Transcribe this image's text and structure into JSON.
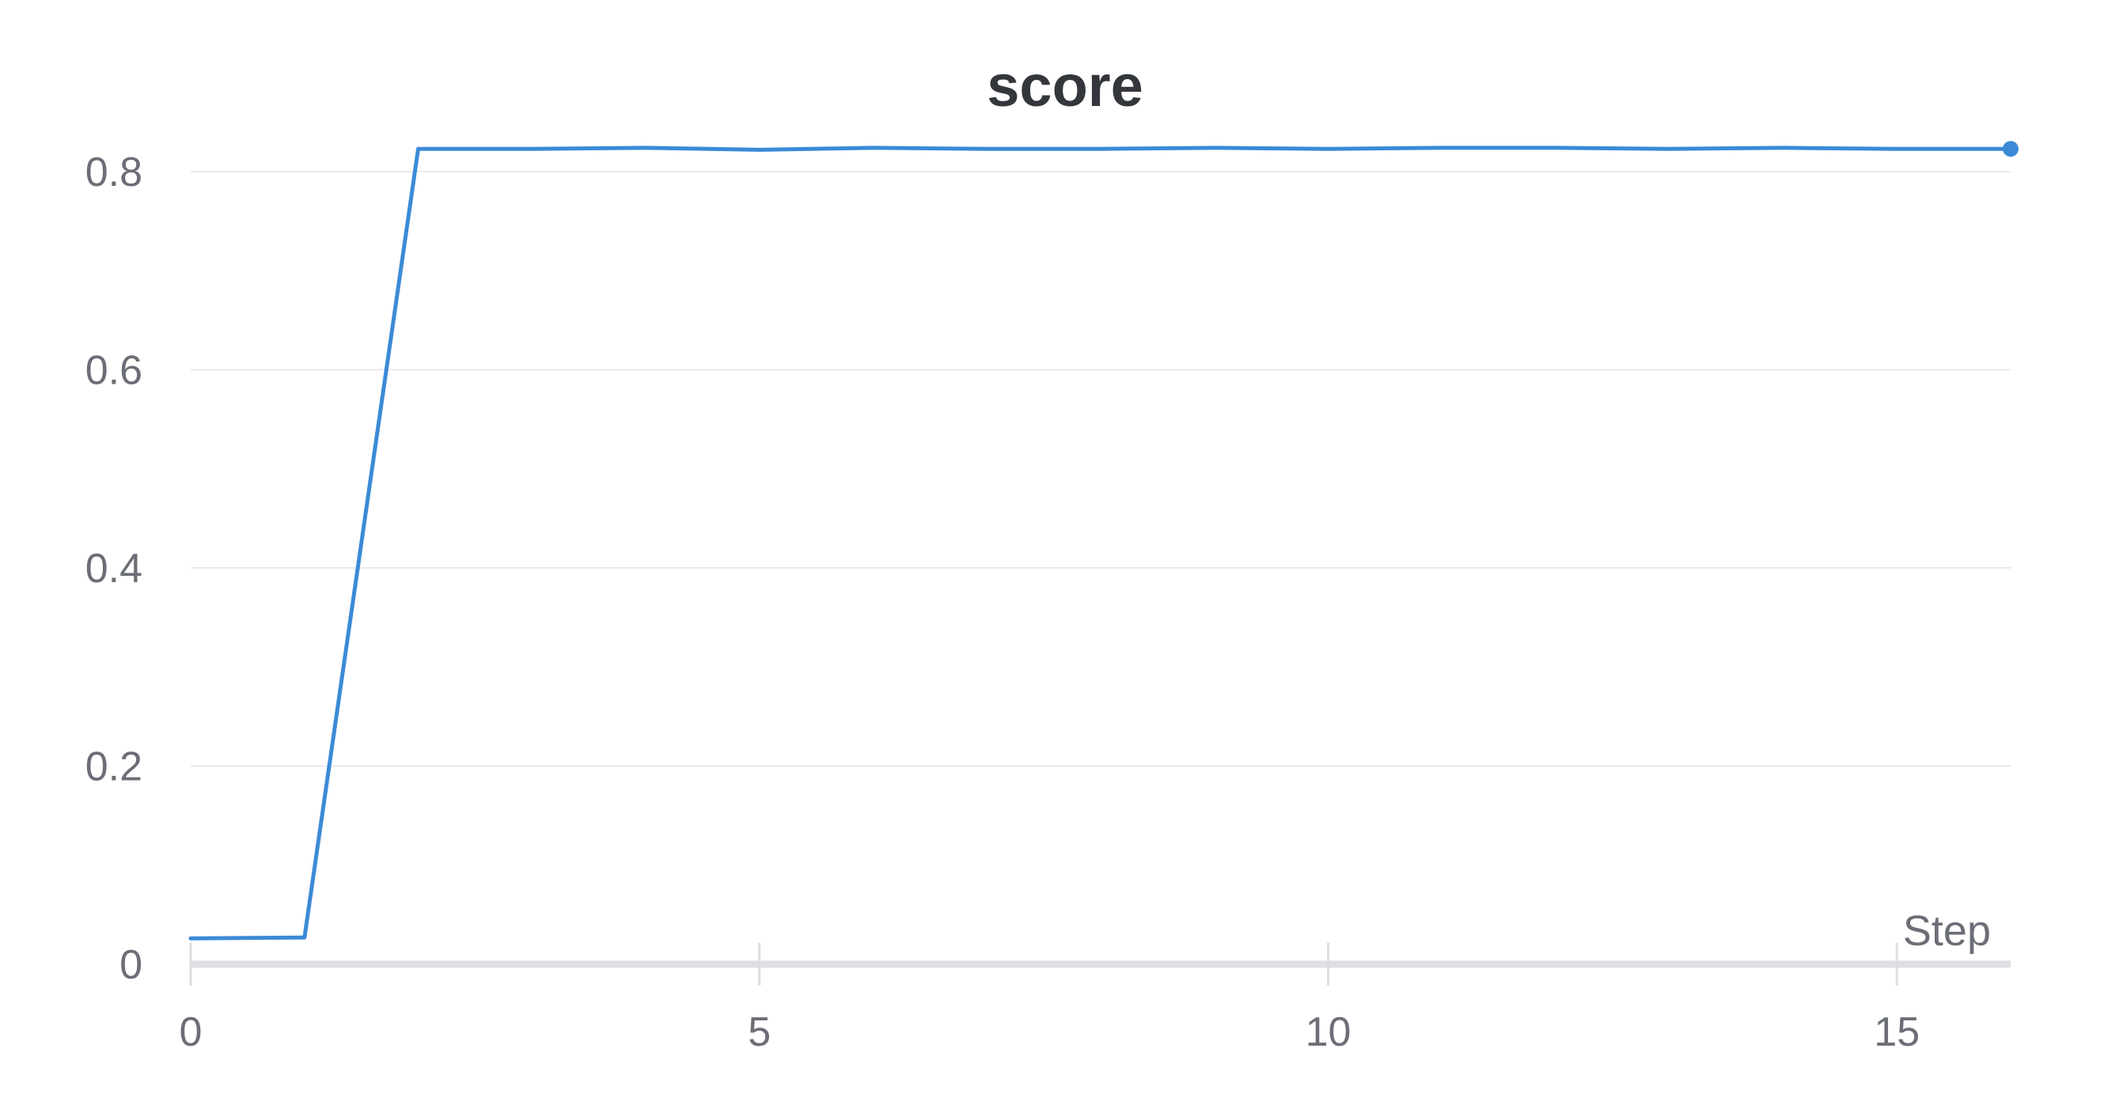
{
  "chart_data": {
    "type": "line",
    "title": "score",
    "xlabel": "Step",
    "ylabel": "",
    "xlim": [
      0,
      16
    ],
    "ylim": [
      0,
      0.8
    ],
    "xticks": [
      0,
      5,
      10,
      15
    ],
    "yticks": [
      0,
      0.2,
      0.4,
      0.6,
      0.8
    ],
    "xtick_labels": [
      "0",
      "5",
      "10",
      "15"
    ],
    "ytick_labels": [
      "0",
      "0.2",
      "0.4",
      "0.6",
      "0.8"
    ],
    "grid": true,
    "legend": "none",
    "series": [
      {
        "color": "#3b8ad6",
        "x": [
          0,
          1,
          2,
          3,
          4,
          5,
          6,
          7,
          8,
          9,
          10,
          11,
          12,
          13,
          14,
          15,
          16
        ],
        "y": [
          0.026,
          0.027,
          0.823,
          0.823,
          0.824,
          0.822,
          0.824,
          0.823,
          0.823,
          0.824,
          0.823,
          0.824,
          0.824,
          0.823,
          0.824,
          0.823,
          0.823
        ]
      }
    ]
  }
}
